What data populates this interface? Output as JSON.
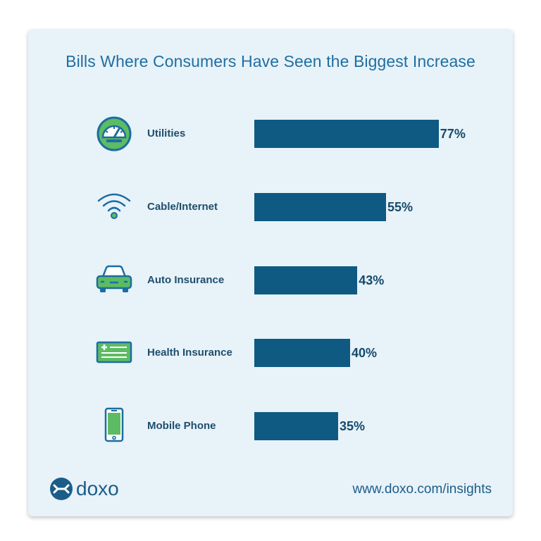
{
  "title": "Bills Where Consumers Have Seen the Biggest Increase",
  "chart_data": {
    "type": "bar",
    "orientation": "horizontal",
    "title": "Bills Where Consumers Have Seen the Biggest Increase",
    "categories": [
      "Utilities",
      "Cable/Internet",
      "Auto Insurance",
      "Health Insurance",
      "Mobile Phone"
    ],
    "values": [
      77,
      55,
      43,
      40,
      35
    ],
    "value_labels": [
      "77%",
      "55%",
      "43%",
      "40%",
      "35%"
    ],
    "unit": "%",
    "xlim": [
      0,
      100
    ],
    "grid": false,
    "legend": "none",
    "bar_color": "#0e5a82",
    "icons": [
      "gauge-icon",
      "wifi-icon",
      "car-icon",
      "health-card-icon",
      "mobile-phone-icon"
    ]
  },
  "brand": {
    "name": "doxo",
    "url": "www.doxo.com/insights"
  },
  "colors": {
    "accent": "#0e5a82",
    "icon_green": "#5dbb63",
    "icon_blue": "#1b6ea0",
    "background": "#e8f2f9"
  }
}
